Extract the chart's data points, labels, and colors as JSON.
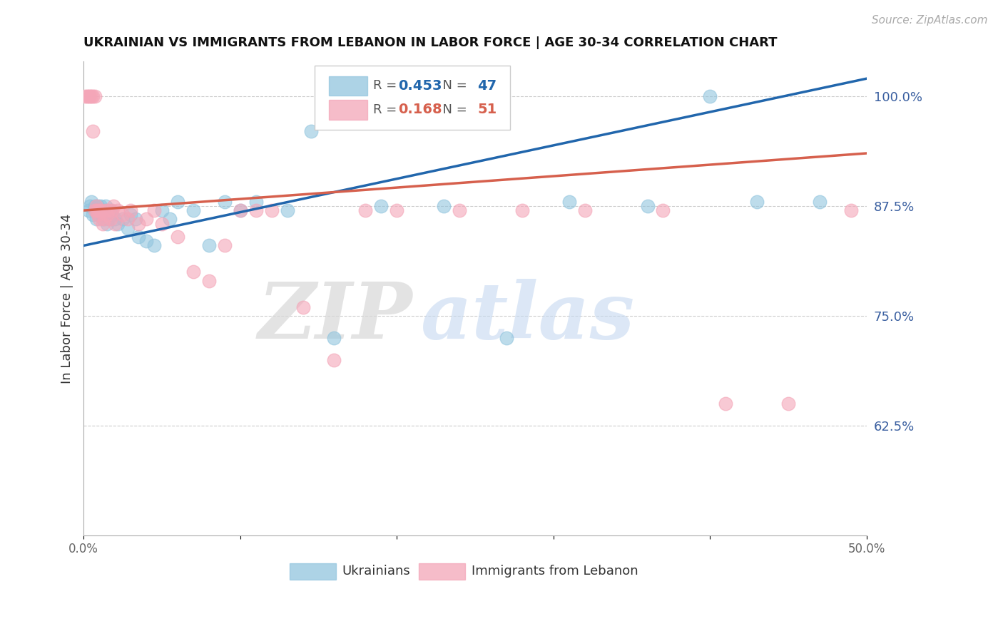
{
  "title": "UKRAINIAN VS IMMIGRANTS FROM LEBANON IN LABOR FORCE | AGE 30-34 CORRELATION CHART",
  "source": "Source: ZipAtlas.com",
  "ylabel": "In Labor Force | Age 30-34",
  "xlabel": "",
  "xlim": [
    0.0,
    0.5
  ],
  "ylim": [
    0.5,
    1.04
  ],
  "xticks": [
    0.0,
    0.1,
    0.2,
    0.3,
    0.4,
    0.5
  ],
  "xtick_labels": [
    "0.0%",
    "",
    "",
    "",
    "",
    "50.0%"
  ],
  "yticks_right": [
    0.625,
    0.75,
    0.875,
    1.0
  ],
  "ytick_labels_right": [
    "62.5%",
    "75.0%",
    "87.5%",
    "100.0%"
  ],
  "blue_color": "#92c5de",
  "pink_color": "#f4a6b8",
  "blue_line_color": "#2166ac",
  "pink_line_color": "#d6604d",
  "blue_r": 0.453,
  "blue_n": 47,
  "pink_r": 0.168,
  "pink_n": 51,
  "legend_label_blue": "Ukrainians",
  "legend_label_pink": "Immigrants from Lebanon",
  "watermark_zip": "ZIP",
  "watermark_atlas": "atlas",
  "blue_scatter_x": [
    0.003,
    0.004,
    0.005,
    0.006,
    0.007,
    0.007,
    0.008,
    0.008,
    0.009,
    0.009,
    0.01,
    0.011,
    0.012,
    0.013,
    0.014,
    0.015,
    0.016,
    0.017,
    0.018,
    0.02,
    0.022,
    0.025,
    0.028,
    0.03,
    0.033,
    0.035,
    0.04,
    0.045,
    0.05,
    0.055,
    0.06,
    0.07,
    0.08,
    0.09,
    0.1,
    0.11,
    0.13,
    0.145,
    0.16,
    0.19,
    0.23,
    0.27,
    0.31,
    0.36,
    0.4,
    0.43,
    0.47
  ],
  "blue_scatter_y": [
    0.87,
    0.875,
    0.88,
    0.865,
    0.87,
    0.875,
    0.86,
    0.87,
    0.865,
    0.875,
    0.87,
    0.875,
    0.86,
    0.87,
    0.875,
    0.855,
    0.86,
    0.87,
    0.865,
    0.86,
    0.855,
    0.86,
    0.85,
    0.865,
    0.86,
    0.84,
    0.835,
    0.83,
    0.87,
    0.86,
    0.88,
    0.87,
    0.83,
    0.88,
    0.87,
    0.88,
    0.87,
    0.96,
    0.725,
    0.875,
    0.875,
    0.725,
    0.88,
    0.875,
    1.0,
    0.88,
    0.88
  ],
  "pink_scatter_x": [
    0.001,
    0.002,
    0.003,
    0.004,
    0.005,
    0.006,
    0.006,
    0.007,
    0.007,
    0.008,
    0.008,
    0.009,
    0.009,
    0.01,
    0.01,
    0.011,
    0.012,
    0.013,
    0.014,
    0.015,
    0.016,
    0.017,
    0.018,
    0.019,
    0.02,
    0.022,
    0.025,
    0.028,
    0.03,
    0.035,
    0.04,
    0.045,
    0.05,
    0.06,
    0.07,
    0.08,
    0.09,
    0.1,
    0.11,
    0.12,
    0.14,
    0.16,
    0.18,
    0.2,
    0.24,
    0.28,
    0.32,
    0.37,
    0.41,
    0.45,
    0.49
  ],
  "pink_scatter_y": [
    1.0,
    1.0,
    1.0,
    1.0,
    1.0,
    1.0,
    0.96,
    1.0,
    0.87,
    0.87,
    0.875,
    0.87,
    0.865,
    0.87,
    0.86,
    0.87,
    0.855,
    0.86,
    0.87,
    0.865,
    0.87,
    0.86,
    0.87,
    0.875,
    0.855,
    0.87,
    0.865,
    0.86,
    0.87,
    0.855,
    0.86,
    0.87,
    0.855,
    0.84,
    0.8,
    0.79,
    0.83,
    0.87,
    0.87,
    0.87,
    0.76,
    0.7,
    0.87,
    0.87,
    0.87,
    0.87,
    0.87,
    0.87,
    0.65,
    0.65,
    0.87
  ]
}
